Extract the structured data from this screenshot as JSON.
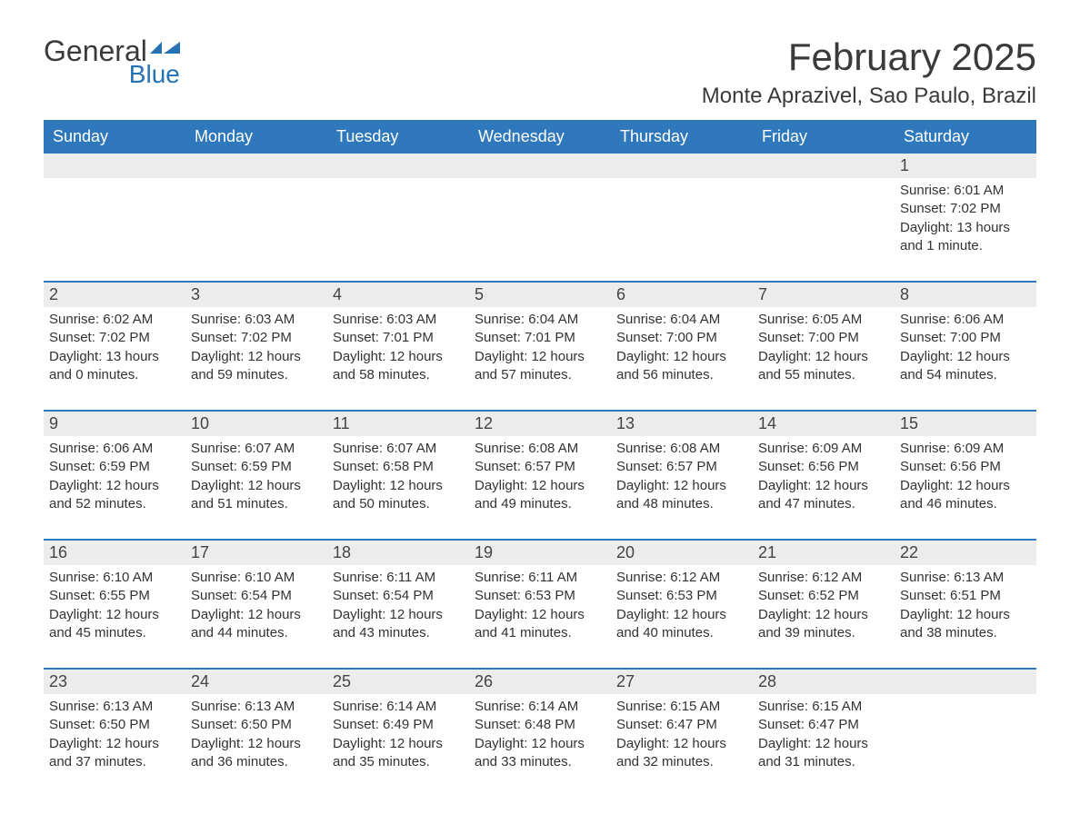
{
  "logo": {
    "top": "General",
    "bottom": "Blue"
  },
  "title": "February 2025",
  "location": "Monte Aprazivel, Sao Paulo, Brazil",
  "colors": {
    "header_bg": "#2e78bb",
    "header_fg": "#ffffff",
    "week_border": "#2e78bb",
    "daynum_bg": "#ececec",
    "text": "#333333",
    "logo_blue": "#2572b4",
    "background": "#ffffff"
  },
  "fonts": {
    "title_size_pt": 32,
    "location_size_pt": 18,
    "dow_size_pt": 14,
    "body_size_pt": 11
  },
  "days_of_week": [
    "Sunday",
    "Monday",
    "Tuesday",
    "Wednesday",
    "Thursday",
    "Friday",
    "Saturday"
  ],
  "weeks": [
    {
      "nums": [
        "",
        "",
        "",
        "",
        "",
        "",
        "1"
      ],
      "cells": [
        "",
        "",
        "",
        "",
        "",
        "",
        "Sunrise: 6:01 AM\nSunset: 7:02 PM\nDaylight: 13 hours and 1 minute."
      ]
    },
    {
      "nums": [
        "2",
        "3",
        "4",
        "5",
        "6",
        "7",
        "8"
      ],
      "cells": [
        "Sunrise: 6:02 AM\nSunset: 7:02 PM\nDaylight: 13 hours and 0 minutes.",
        "Sunrise: 6:03 AM\nSunset: 7:02 PM\nDaylight: 12 hours and 59 minutes.",
        "Sunrise: 6:03 AM\nSunset: 7:01 PM\nDaylight: 12 hours and 58 minutes.",
        "Sunrise: 6:04 AM\nSunset: 7:01 PM\nDaylight: 12 hours and 57 minutes.",
        "Sunrise: 6:04 AM\nSunset: 7:00 PM\nDaylight: 12 hours and 56 minutes.",
        "Sunrise: 6:05 AM\nSunset: 7:00 PM\nDaylight: 12 hours and 55 minutes.",
        "Sunrise: 6:06 AM\nSunset: 7:00 PM\nDaylight: 12 hours and 54 minutes."
      ]
    },
    {
      "nums": [
        "9",
        "10",
        "11",
        "12",
        "13",
        "14",
        "15"
      ],
      "cells": [
        "Sunrise: 6:06 AM\nSunset: 6:59 PM\nDaylight: 12 hours and 52 minutes.",
        "Sunrise: 6:07 AM\nSunset: 6:59 PM\nDaylight: 12 hours and 51 minutes.",
        "Sunrise: 6:07 AM\nSunset: 6:58 PM\nDaylight: 12 hours and 50 minutes.",
        "Sunrise: 6:08 AM\nSunset: 6:57 PM\nDaylight: 12 hours and 49 minutes.",
        "Sunrise: 6:08 AM\nSunset: 6:57 PM\nDaylight: 12 hours and 48 minutes.",
        "Sunrise: 6:09 AM\nSunset: 6:56 PM\nDaylight: 12 hours and 47 minutes.",
        "Sunrise: 6:09 AM\nSunset: 6:56 PM\nDaylight: 12 hours and 46 minutes."
      ]
    },
    {
      "nums": [
        "16",
        "17",
        "18",
        "19",
        "20",
        "21",
        "22"
      ],
      "cells": [
        "Sunrise: 6:10 AM\nSunset: 6:55 PM\nDaylight: 12 hours and 45 minutes.",
        "Sunrise: 6:10 AM\nSunset: 6:54 PM\nDaylight: 12 hours and 44 minutes.",
        "Sunrise: 6:11 AM\nSunset: 6:54 PM\nDaylight: 12 hours and 43 minutes.",
        "Sunrise: 6:11 AM\nSunset: 6:53 PM\nDaylight: 12 hours and 41 minutes.",
        "Sunrise: 6:12 AM\nSunset: 6:53 PM\nDaylight: 12 hours and 40 minutes.",
        "Sunrise: 6:12 AM\nSunset: 6:52 PM\nDaylight: 12 hours and 39 minutes.",
        "Sunrise: 6:13 AM\nSunset: 6:51 PM\nDaylight: 12 hours and 38 minutes."
      ]
    },
    {
      "nums": [
        "23",
        "24",
        "25",
        "26",
        "27",
        "28",
        ""
      ],
      "cells": [
        "Sunrise: 6:13 AM\nSunset: 6:50 PM\nDaylight: 12 hours and 37 minutes.",
        "Sunrise: 6:13 AM\nSunset: 6:50 PM\nDaylight: 12 hours and 36 minutes.",
        "Sunrise: 6:14 AM\nSunset: 6:49 PM\nDaylight: 12 hours and 35 minutes.",
        "Sunrise: 6:14 AM\nSunset: 6:48 PM\nDaylight: 12 hours and 33 minutes.",
        "Sunrise: 6:15 AM\nSunset: 6:47 PM\nDaylight: 12 hours and 32 minutes.",
        "Sunrise: 6:15 AM\nSunset: 6:47 PM\nDaylight: 12 hours and 31 minutes.",
        ""
      ]
    }
  ]
}
